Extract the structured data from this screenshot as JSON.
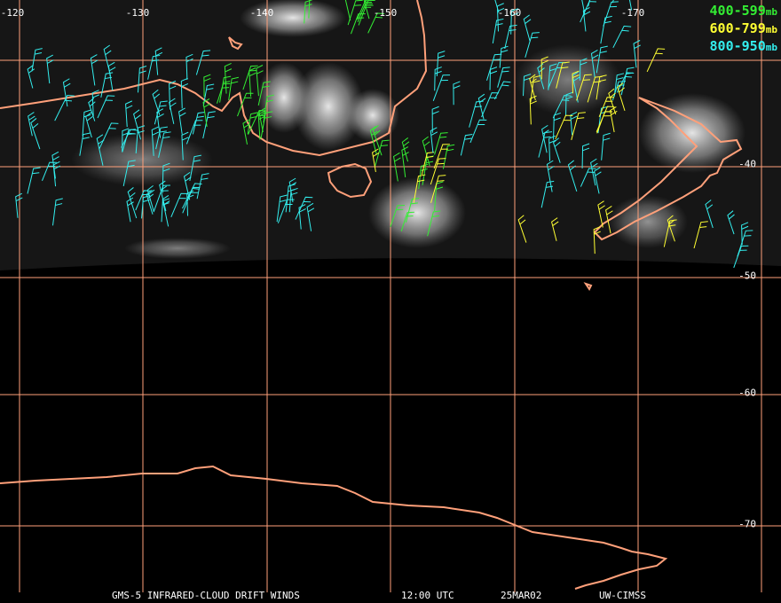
{
  "map": {
    "lon_labels": [
      "-120",
      "-130",
      "-140",
      "-150",
      "-160",
      "-170"
    ],
    "lat_labels": [
      "-40",
      "-50",
      "-60",
      "-70"
    ]
  },
  "legend": {
    "items": [
      {
        "range": "400-599",
        "unit": "mb",
        "color": "#33ee33"
      },
      {
        "range": "600-799",
        "unit": "mb",
        "color": "#ffff33"
      },
      {
        "range": "800-950",
        "unit": "mb",
        "color": "#33eeee"
      }
    ]
  },
  "caption": {
    "product": "GMS-5 INFRARED-CLOUD DRIFT WINDS",
    "time": "12:00 UTC",
    "date": "25MAR02",
    "source": "UW-CIMSS"
  },
  "colors": {
    "coastline": "#ffa07a",
    "grid": "#ffa07a",
    "background": "#000000"
  }
}
